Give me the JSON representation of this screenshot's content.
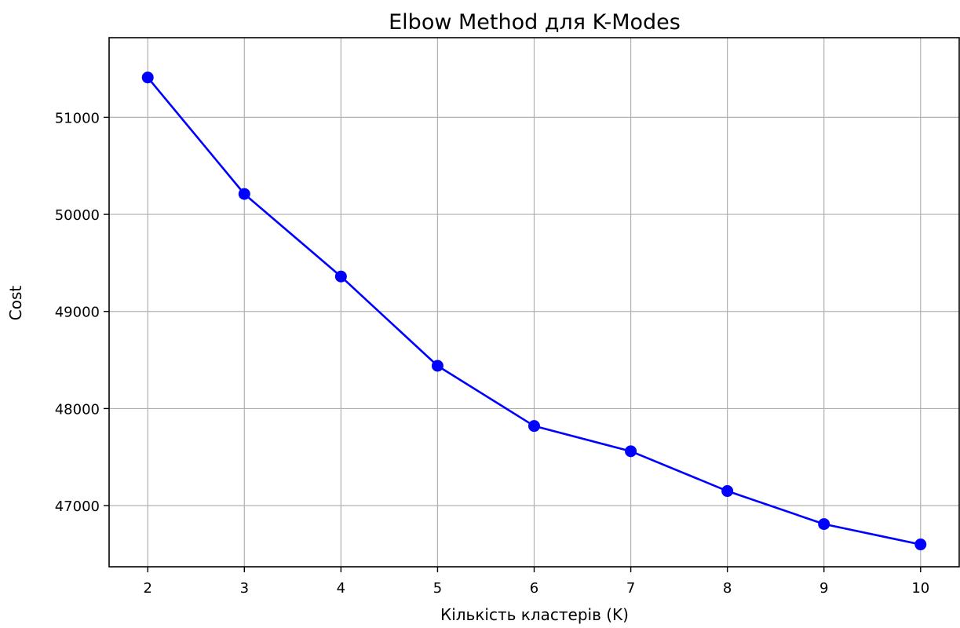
{
  "chart_data": {
    "type": "line",
    "title": "Elbow Method для K-Modes",
    "xlabel": "Кількість кластерів (K)",
    "ylabel": "Cost",
    "x": [
      2,
      3,
      4,
      5,
      6,
      7,
      8,
      9,
      10
    ],
    "series": [
      {
        "values": [
          51410,
          50210,
          49360,
          48440,
          47820,
          47560,
          47150,
          46810,
          46600
        ],
        "color": "#0000ff",
        "marker": "circle"
      }
    ],
    "xlim": [
      1.6,
      10.4
    ],
    "ylim": [
      46370,
      51820
    ],
    "xticks": [
      2,
      3,
      4,
      5,
      6,
      7,
      8,
      9,
      10
    ],
    "yticks": [
      47000,
      48000,
      49000,
      50000,
      51000
    ],
    "grid": true
  }
}
